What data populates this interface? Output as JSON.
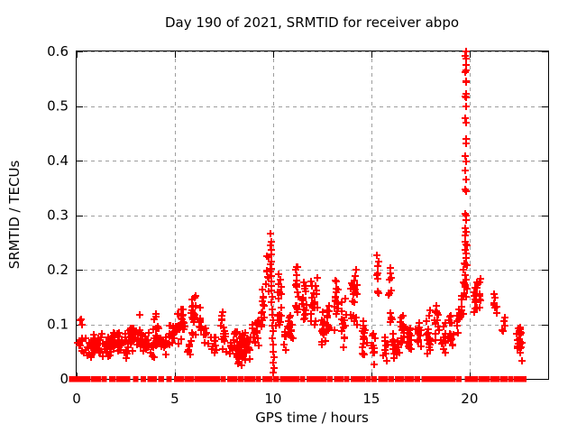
{
  "chart_data": {
    "type": "scatter",
    "title": "Day 190 of 2021, SRMTID for receiver abpo",
    "xlabel": "GPS time / hours",
    "ylabel": "SRMTID / TECUs",
    "xlim": [
      0,
      24
    ],
    "ylim": [
      0,
      0.6
    ],
    "xticks": [
      "0",
      "5",
      "10",
      "15",
      "20"
    ],
    "yticks": [
      "0",
      "0.1",
      "0.2",
      "0.3",
      "0.4",
      "0.5",
      "0.6"
    ],
    "grid": true,
    "legend": "none",
    "marker": "plus",
    "colors": {
      "marker": "#ff0000",
      "grid": "#9e9e9e",
      "axis": "#000000",
      "text": "#000000",
      "background": "#ffffff"
    },
    "series": {
      "clusters_format": [
        "x_center_hours",
        "x_halfspread_hours",
        "y_min_tecu",
        "y_max_tecu",
        "count"
      ],
      "clusters": [
        [
          0.3,
          0.2,
          0.02,
          0.115,
          16
        ],
        [
          0.7,
          0.15,
          0.03,
          0.085,
          12
        ],
        [
          1.05,
          0.25,
          0.035,
          0.095,
          26
        ],
        [
          1.5,
          0.2,
          0.03,
          0.09,
          18
        ],
        [
          1.9,
          0.2,
          0.045,
          0.1,
          20
        ],
        [
          2.2,
          0.12,
          0.04,
          0.09,
          12
        ],
        [
          2.55,
          0.15,
          0.035,
          0.085,
          12
        ],
        [
          2.9,
          0.2,
          0.045,
          0.105,
          20
        ],
        [
          3.3,
          0.18,
          0.05,
          0.125,
          18
        ],
        [
          3.6,
          0.12,
          0.04,
          0.1,
          12
        ],
        [
          3.85,
          0.1,
          0.03,
          0.07,
          7
        ],
        [
          4.1,
          0.15,
          0.05,
          0.135,
          16
        ],
        [
          4.45,
          0.15,
          0.04,
          0.09,
          13
        ],
        [
          4.8,
          0.15,
          0.05,
          0.105,
          13
        ],
        [
          5.1,
          0.08,
          0.06,
          0.125,
          9
        ],
        [
          5.35,
          0.12,
          0.05,
          0.152,
          20
        ],
        [
          5.7,
          0.1,
          0.04,
          0.08,
          7
        ],
        [
          5.95,
          0.12,
          0.06,
          0.17,
          20
        ],
        [
          6.3,
          0.08,
          0.08,
          0.152,
          9
        ],
        [
          6.55,
          0.1,
          0.05,
          0.1,
          7
        ],
        [
          7.0,
          0.15,
          0.04,
          0.085,
          9
        ],
        [
          7.45,
          0.15,
          0.04,
          0.13,
          16
        ],
        [
          7.8,
          0.1,
          0.04,
          0.08,
          7
        ],
        [
          8.05,
          0.1,
          0.05,
          0.1,
          9
        ],
        [
          8.35,
          0.2,
          0.02,
          0.1,
          28
        ],
        [
          8.7,
          0.15,
          0.03,
          0.085,
          18
        ],
        [
          9.1,
          0.15,
          0.05,
          0.12,
          16
        ],
        [
          9.45,
          0.1,
          0.07,
          0.175,
          13
        ],
        [
          9.75,
          0.1,
          0.15,
          0.24,
          8
        ],
        [
          10.3,
          0.12,
          0.08,
          0.205,
          16
        ],
        [
          10.6,
          0.08,
          0.05,
          0.1,
          7
        ],
        [
          10.9,
          0.12,
          0.05,
          0.125,
          12
        ],
        [
          11.2,
          0.1,
          0.1,
          0.215,
          16
        ],
        [
          11.6,
          0.12,
          0.07,
          0.2,
          16
        ],
        [
          12.1,
          0.18,
          0.07,
          0.21,
          20
        ],
        [
          12.5,
          0.12,
          0.05,
          0.13,
          13
        ],
        [
          12.8,
          0.1,
          0.06,
          0.155,
          12
        ],
        [
          13.2,
          0.12,
          0.07,
          0.19,
          16
        ],
        [
          13.6,
          0.12,
          0.05,
          0.155,
          14
        ],
        [
          14.15,
          0.18,
          0.09,
          0.22,
          22
        ],
        [
          14.6,
          0.12,
          0.03,
          0.12,
          16
        ],
        [
          15.1,
          0.12,
          0.02,
          0.09,
          12
        ],
        [
          15.3,
          0.08,
          0.13,
          0.25,
          9
        ],
        [
          15.7,
          0.12,
          0.03,
          0.08,
          9
        ],
        [
          15.95,
          0.1,
          0.08,
          0.215,
          12
        ],
        [
          16.25,
          0.15,
          0.03,
          0.09,
          18
        ],
        [
          16.6,
          0.12,
          0.04,
          0.145,
          16
        ],
        [
          16.95,
          0.12,
          0.03,
          0.13,
          16
        ],
        [
          17.4,
          0.12,
          0.04,
          0.13,
          13
        ],
        [
          17.9,
          0.12,
          0.03,
          0.15,
          16
        ],
        [
          18.3,
          0.12,
          0.04,
          0.145,
          13
        ],
        [
          18.7,
          0.12,
          0.04,
          0.105,
          12
        ],
        [
          19.05,
          0.12,
          0.04,
          0.135,
          16
        ],
        [
          19.4,
          0.1,
          0.06,
          0.15,
          10
        ],
        [
          19.62,
          0.07,
          0.1,
          0.2,
          7
        ],
        [
          20.3,
          0.12,
          0.1,
          0.19,
          14
        ],
        [
          20.55,
          0.08,
          0.12,
          0.19,
          7
        ],
        [
          21.3,
          0.08,
          0.1,
          0.17,
          9
        ],
        [
          21.75,
          0.07,
          0.06,
          0.12,
          5
        ],
        [
          22.55,
          0.12,
          0.03,
          0.1,
          22
        ]
      ],
      "evening_peak_points": [
        [
          19.82,
          0.6
        ],
        [
          19.8,
          0.592
        ],
        [
          19.83,
          0.586
        ],
        [
          19.81,
          0.575
        ],
        [
          19.84,
          0.565
        ],
        [
          19.8,
          0.562
        ],
        [
          19.82,
          0.545
        ],
        [
          19.83,
          0.543
        ],
        [
          19.81,
          0.522
        ],
        [
          19.8,
          0.518
        ],
        [
          19.84,
          0.515
        ],
        [
          19.82,
          0.5
        ],
        [
          19.79,
          0.478
        ],
        [
          19.83,
          0.47
        ],
        [
          19.81,
          0.44
        ],
        [
          19.82,
          0.432
        ],
        [
          19.8,
          0.408
        ],
        [
          19.83,
          0.398
        ],
        [
          19.78,
          0.382
        ],
        [
          19.81,
          0.366
        ],
        [
          19.8,
          0.347
        ],
        [
          19.84,
          0.344
        ],
        [
          19.76,
          0.302
        ],
        [
          19.81,
          0.3
        ],
        [
          19.83,
          0.291
        ],
        [
          19.78,
          0.276
        ],
        [
          19.82,
          0.27
        ],
        [
          19.8,
          0.262
        ],
        [
          19.77,
          0.251
        ],
        [
          19.82,
          0.247
        ],
        [
          19.85,
          0.245
        ],
        [
          19.79,
          0.236
        ],
        [
          19.83,
          0.23
        ],
        [
          19.81,
          0.221
        ],
        [
          19.75,
          0.212
        ],
        [
          19.8,
          0.21
        ],
        [
          19.85,
          0.208
        ],
        [
          19.7,
          0.2
        ],
        [
          19.78,
          0.19
        ],
        [
          19.83,
          0.181
        ],
        [
          19.72,
          0.175
        ],
        [
          19.76,
          0.172
        ],
        [
          19.8,
          0.168
        ],
        [
          19.85,
          0.165
        ],
        [
          19.74,
          0.157
        ],
        [
          19.81,
          0.15
        ]
      ],
      "midday_spike_points": [
        [
          9.88,
          0.266
        ],
        [
          9.9,
          0.252
        ],
        [
          9.87,
          0.244
        ],
        [
          9.91,
          0.236
        ],
        [
          9.89,
          0.228
        ],
        [
          9.92,
          0.215
        ],
        [
          9.88,
          0.21
        ],
        [
          9.9,
          0.202
        ],
        [
          9.87,
          0.196
        ],
        [
          9.91,
          0.188
        ],
        [
          9.89,
          0.178
        ],
        [
          9.93,
          0.17
        ],
        [
          9.9,
          0.162
        ],
        [
          9.95,
          0.15
        ],
        [
          9.92,
          0.14
        ],
        [
          9.97,
          0.128
        ],
        [
          9.94,
          0.118
        ],
        [
          9.99,
          0.108
        ],
        [
          9.96,
          0.098
        ],
        [
          10.0,
          0.088
        ],
        [
          9.98,
          0.075
        ],
        [
          10.02,
          0.062
        ],
        [
          9.99,
          0.05
        ],
        [
          10.03,
          0.04
        ],
        [
          10.0,
          0.03
        ],
        [
          10.04,
          0.02
        ],
        [
          10.01,
          0.012
        ]
      ],
      "zero_line_segments_hours": [
        [
          -0.3,
          0.12
        ],
        [
          0.15,
          0.6
        ],
        [
          0.8,
          1.15
        ],
        [
          1.35,
          1.45
        ],
        [
          1.75,
          1.9
        ],
        [
          2.1,
          2.4
        ],
        [
          2.55,
          2.65
        ],
        [
          2.95,
          3.05
        ],
        [
          3.35,
          3.45
        ],
        [
          3.7,
          4.0
        ],
        [
          4.25,
          4.35
        ],
        [
          4.65,
          4.75
        ],
        [
          5.05,
          5.4
        ],
        [
          5.6,
          5.9
        ],
        [
          6.1,
          6.25
        ],
        [
          6.4,
          6.9
        ],
        [
          7.1,
          7.2
        ],
        [
          7.4,
          7.5
        ],
        [
          7.75,
          8.1
        ],
        [
          8.3,
          8.4
        ],
        [
          8.6,
          9.0
        ],
        [
          9.2,
          9.3
        ],
        [
          9.55,
          9.9
        ],
        [
          10.1,
          10.2
        ],
        [
          10.45,
          10.75
        ],
        [
          10.95,
          11.25
        ],
        [
          11.45,
          11.55
        ],
        [
          11.8,
          12.15
        ],
        [
          12.35,
          12.65
        ],
        [
          12.85,
          12.95
        ],
        [
          13.2,
          13.5
        ],
        [
          13.7,
          13.8
        ],
        [
          14.05,
          14.6
        ],
        [
          14.8,
          14.9
        ],
        [
          15.1,
          15.2
        ],
        [
          15.45,
          15.75
        ],
        [
          15.95,
          16.05
        ],
        [
          16.3,
          16.6
        ],
        [
          16.8,
          17.1
        ],
        [
          17.3,
          17.4
        ],
        [
          17.65,
          17.75
        ],
        [
          17.95,
          18.05
        ],
        [
          18.25,
          18.35
        ],
        [
          18.55,
          19.2
        ],
        [
          19.4,
          19.5
        ],
        [
          19.85,
          20.35
        ],
        [
          20.55,
          20.95
        ],
        [
          21.15,
          21.45
        ],
        [
          21.65,
          21.85
        ],
        [
          22.05,
          22.15
        ],
        [
          22.35,
          22.55
        ],
        [
          22.65,
          22.8
        ]
      ]
    }
  }
}
